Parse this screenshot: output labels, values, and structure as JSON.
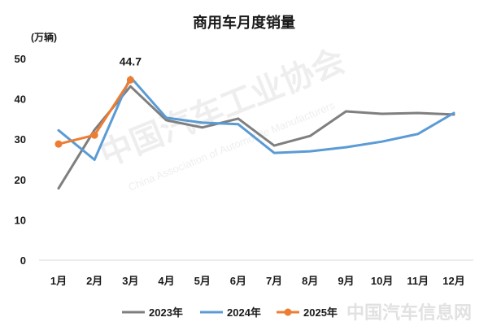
{
  "chart_data": {
    "type": "line",
    "title": "商用车月度销量",
    "ylabel": "(万辆)",
    "xlabel": "",
    "categories": [
      "1月",
      "2月",
      "3月",
      "4月",
      "5月",
      "6月",
      "7月",
      "8月",
      "9月",
      "10月",
      "11月",
      "12月"
    ],
    "ylim": [
      0,
      50
    ],
    "yticks": [
      0,
      10,
      20,
      30,
      40,
      50
    ],
    "grid": false,
    "legend": "bottom",
    "series": [
      {
        "name": "2023年",
        "color": "#7f7f7f",
        "markers": false,
        "values": [
          17.8,
          32.3,
          43.1,
          34.7,
          32.9,
          35.1,
          28.4,
          30.8,
          36.9,
          36.3,
          36.5,
          36.1
        ]
      },
      {
        "name": "2024年",
        "color": "#5b9bd5",
        "markers": false,
        "values": [
          32.2,
          24.9,
          45.4,
          35.3,
          34.1,
          33.7,
          26.6,
          27.0,
          28.0,
          29.4,
          31.3,
          36.5
        ]
      },
      {
        "name": "2025年",
        "color": "#ed7d31",
        "markers": true,
        "values": [
          28.8,
          31.0,
          44.7,
          null,
          null,
          null,
          null,
          null,
          null,
          null,
          null,
          null
        ]
      }
    ],
    "annotations": [
      {
        "text": "44.7",
        "series": "2025年",
        "category": "3月"
      }
    ]
  },
  "watermark": {
    "org_cn": "中国汽车工业协会",
    "org_en": "China Association of Automobile Manufacturers",
    "site": "中国汽车信息网"
  }
}
